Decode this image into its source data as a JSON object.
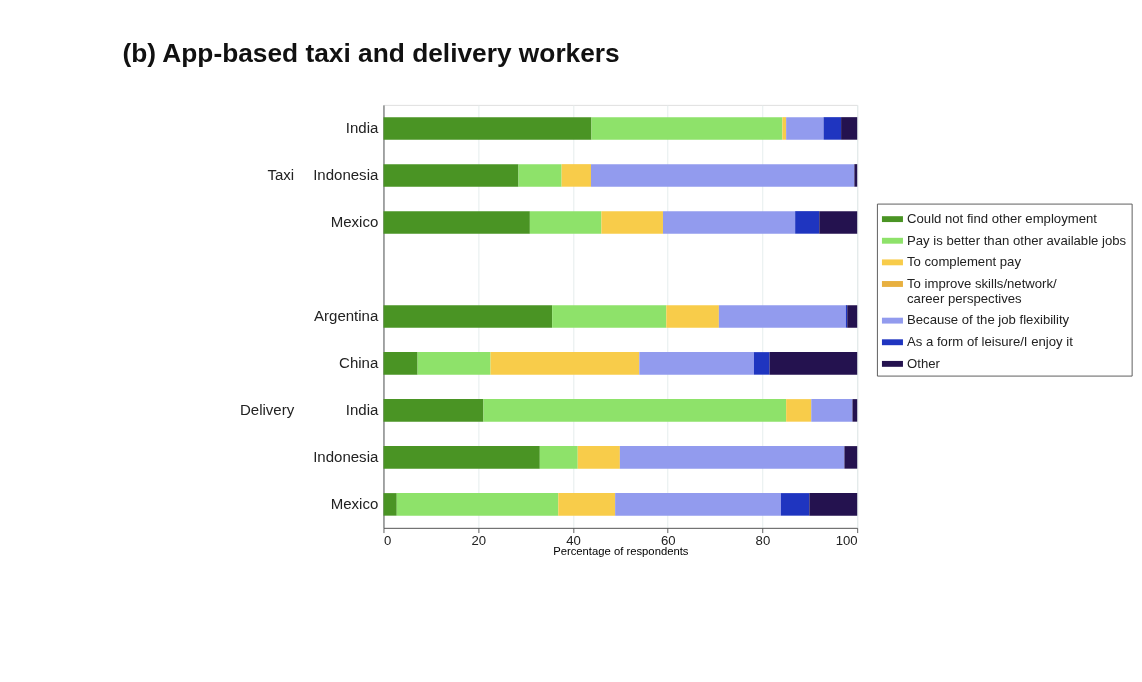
{
  "chart_data": {
    "type": "bar",
    "orientation": "horizontal",
    "stacked": true,
    "title": "(b)  App-based taxi and delivery workers",
    "xlabel": "Percentage of respondents",
    "categories": [
      "India",
      "Indonesia",
      "Mexico",
      null,
      "Argentina",
      "China",
      "India",
      "Indonesia",
      "Mexico"
    ],
    "annotations": [
      "Taxi",
      "Delivery"
    ],
    "series": [
      {
        "name": "Could not find other employment",
        "color": "#4a9424",
        "values": [
          43.9,
          28.5,
          30.9,
          null,
          35.6,
          7.2,
          21.1,
          33.0,
          2.8
        ]
      },
      {
        "name": "Pay is better than other available jobs",
        "color": "#8ee26a",
        "values": [
          40.3,
          9.1,
          15.1,
          null,
          24.1,
          15.4,
          63.9,
          8.0,
          34.1
        ]
      },
      {
        "name": "To complement pay",
        "color": "#f8cc4a",
        "values": [
          0.8,
          6.2,
          13.0,
          null,
          11.1,
          31.4,
          5.3,
          8.9,
          12.0
        ]
      },
      {
        "name": "To improve skills/network/ career perspectives",
        "color": "#e8b040",
        "values": [
          0,
          0,
          0,
          null,
          0,
          0,
          0,
          0,
          0
        ]
      },
      {
        "name": "Because of the job flexibility",
        "color": "#929bee",
        "values": [
          7.9,
          55.6,
          27.9,
          null,
          26.8,
          24.2,
          8.7,
          47.4,
          35.0
        ]
      },
      {
        "name": "As a form of leisure/I enjoy it",
        "color": "#1f35c0",
        "values": [
          3.7,
          0,
          5.1,
          null,
          0.3,
          3.3,
          0,
          0,
          6.0
        ]
      },
      {
        "name": "Other",
        "color": "#24124f",
        "values": [
          3.4,
          0.6,
          8.0,
          null,
          2.1,
          18.5,
          1.0,
          2.7,
          10.1
        ]
      }
    ],
    "xlim": [
      0,
      100
    ],
    "xticks": [
      0,
      20,
      40,
      60,
      80,
      100
    ],
    "grid": "x",
    "legend": "right"
  }
}
